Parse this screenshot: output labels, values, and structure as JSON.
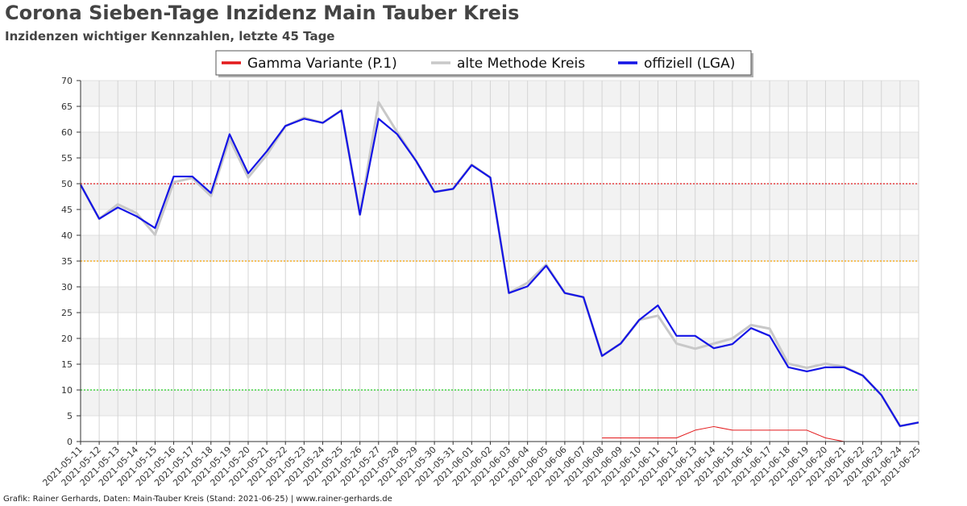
{
  "title": "Corona Sieben-Tage Inzidenz Main Tauber Kreis",
  "subtitle": "Inzidenzen wichtiger Kennzahlen, letzte 45 Tage",
  "footer": "Grafik: Rainer Gerhards, Daten: Main-Tauber Kreis (Stand: 2021-06-25) | www.rainer-gerhards.de",
  "chart_data": {
    "type": "line",
    "x": [
      "2021-05-11",
      "2021-05-12",
      "2021-05-13",
      "2021-05-14",
      "2021-05-15",
      "2021-05-16",
      "2021-05-17",
      "2021-05-18",
      "2021-05-19",
      "2021-05-20",
      "2021-05-21",
      "2021-05-22",
      "2021-05-23",
      "2021-05-24",
      "2021-05-25",
      "2021-05-26",
      "2021-05-27",
      "2021-05-28",
      "2021-05-29",
      "2021-05-30",
      "2021-05-31",
      "2021-06-01",
      "2021-06-02",
      "2021-06-03",
      "2021-06-04",
      "2021-06-05",
      "2021-06-06",
      "2021-06-07",
      "2021-06-08",
      "2021-06-09",
      "2021-06-10",
      "2021-06-11",
      "2021-06-12",
      "2021-06-13",
      "2021-06-14",
      "2021-06-15",
      "2021-06-16",
      "2021-06-17",
      "2021-06-18",
      "2021-06-19",
      "2021-06-20",
      "2021-06-21",
      "2021-06-22",
      "2021-06-23",
      "2021-06-24",
      "2021-06-25"
    ],
    "ylim": [
      0,
      70
    ],
    "yticks": [
      0,
      5,
      10,
      15,
      20,
      25,
      30,
      35,
      40,
      45,
      50,
      55,
      60,
      65,
      70
    ],
    "grid": true,
    "legend_position": "top-center",
    "thresholds": [
      {
        "value": 50,
        "color": "#e31a1c"
      },
      {
        "value": 35,
        "color": "#f5a000"
      },
      {
        "value": 10,
        "color": "#1fd01f"
      }
    ],
    "series": [
      {
        "name": "Gamma Variante (P.1)",
        "color": "#e31a1c",
        "values": [
          null,
          null,
          null,
          null,
          null,
          null,
          null,
          null,
          null,
          null,
          null,
          null,
          null,
          null,
          null,
          null,
          null,
          null,
          null,
          null,
          null,
          null,
          null,
          null,
          null,
          null,
          null,
          null,
          0.7,
          0.7,
          0.7,
          0.7,
          0.7,
          2.2,
          2.9,
          2.2,
          2.2,
          2.2,
          2.2,
          2.2,
          0.7,
          0,
          null,
          null,
          null,
          null
        ]
      },
      {
        "name": "alte Methode Kreis",
        "color": "#c8c8c8",
        "values": [
          49.8,
          43.2,
          46.0,
          44.3,
          40.1,
          50.3,
          51.1,
          47.6,
          58.7,
          51.2,
          55.6,
          61.2,
          62.8,
          61.8,
          64.2,
          44.0,
          65.8,
          60.0,
          54.5,
          48.4,
          49.0,
          53.7,
          51.2,
          28.8,
          30.8,
          34.3,
          28.8,
          28.0,
          16.6,
          19.0,
          23.6,
          24.4,
          19.0,
          18.0,
          19.0,
          20.0,
          22.6,
          21.9,
          15.1,
          14.3,
          15.1,
          14.5,
          12.8,
          9.0,
          3.0,
          3.7
        ]
      },
      {
        "name": "offiziell (LGA)",
        "color": "#1414e6",
        "values": [
          49.8,
          43.2,
          45.4,
          43.7,
          41.4,
          51.4,
          51.4,
          48.2,
          59.6,
          52.0,
          56.3,
          61.2,
          62.6,
          61.8,
          64.2,
          44.0,
          62.6,
          59.6,
          54.5,
          48.4,
          49.0,
          53.6,
          51.2,
          28.8,
          30.1,
          34.1,
          28.8,
          28.0,
          16.6,
          19.0,
          23.6,
          26.4,
          20.5,
          20.5,
          18.1,
          18.9,
          22.0,
          20.5,
          14.4,
          13.6,
          14.4,
          14.4,
          12.8,
          9.0,
          3.0,
          3.7
        ]
      }
    ]
  }
}
